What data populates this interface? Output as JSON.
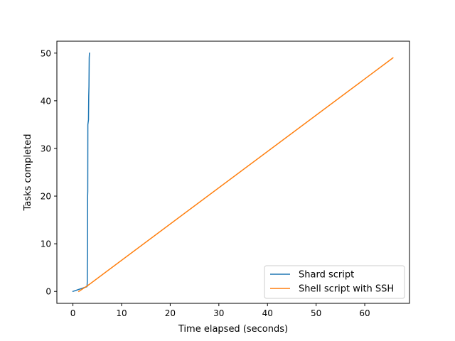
{
  "chart_data": {
    "type": "line",
    "title": "",
    "xlabel": "Time elapsed (seconds)",
    "ylabel": "Tasks completed",
    "xlim": [
      -3.3,
      69.2
    ],
    "ylim": [
      -2.5,
      52.5
    ],
    "xticks": [
      0,
      10,
      20,
      30,
      40,
      50,
      60
    ],
    "yticks": [
      0,
      10,
      20,
      30,
      40,
      50
    ],
    "grid": false,
    "legend_position": "lower-right",
    "series": [
      {
        "name": "Shard script",
        "color": "#1f77b4",
        "points": [
          [
            0.0,
            0
          ],
          [
            2.9,
            1
          ],
          [
            2.95,
            2
          ],
          [
            2.97,
            6
          ],
          [
            3.0,
            7
          ],
          [
            3.02,
            20
          ],
          [
            3.05,
            21
          ],
          [
            3.07,
            35
          ],
          [
            3.2,
            36
          ],
          [
            3.25,
            41
          ],
          [
            3.3,
            43
          ],
          [
            3.35,
            49
          ],
          [
            3.4,
            50
          ]
        ]
      },
      {
        "name": "Shell script with SSH",
        "color": "#ff7f0e",
        "points": [
          [
            1.2,
            0
          ],
          [
            3.0,
            1.2
          ],
          [
            65.8,
            49
          ]
        ]
      }
    ]
  }
}
